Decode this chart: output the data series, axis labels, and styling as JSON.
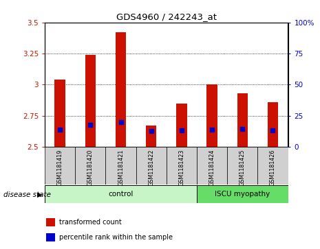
{
  "title": "GDS4960 / 242243_at",
  "samples": [
    "GSM1181419",
    "GSM1181420",
    "GSM1181421",
    "GSM1181422",
    "GSM1181423",
    "GSM1181424",
    "GSM1181425",
    "GSM1181426"
  ],
  "transformed_counts": [
    3.04,
    3.24,
    3.42,
    2.67,
    2.85,
    3.0,
    2.93,
    2.86
  ],
  "percentile_values": [
    2.64,
    2.68,
    2.7,
    2.625,
    2.635,
    2.64,
    2.645,
    2.635
  ],
  "ymin": 2.5,
  "ymax": 3.5,
  "yticks_left": [
    2.5,
    2.75,
    3.0,
    3.25,
    3.5
  ],
  "ytick_labels_left": [
    "2.5",
    "2.75",
    "3",
    "3.25",
    "3.5"
  ],
  "right_yticks": [
    0,
    25,
    50,
    75,
    100
  ],
  "right_ytick_labels": [
    "0",
    "25",
    "50",
    "75",
    "100%"
  ],
  "groups": [
    {
      "label": "control",
      "indices": [
        0,
        1,
        2,
        3,
        4
      ],
      "color": "#c8f5c8"
    },
    {
      "label": "ISCU myopathy",
      "indices": [
        5,
        6,
        7
      ],
      "color": "#66dd66"
    }
  ],
  "bar_color": "#cc1100",
  "percentile_color": "#0000cc",
  "plot_bg_color": "#ffffff",
  "bar_bg_color": "#d0d0d0",
  "left_tick_color": "#cc1100",
  "right_tick_color": "#0000cc",
  "grid_color": "#000000",
  "disease_state_label": "disease state",
  "legend_items": [
    {
      "label": "transformed count",
      "color": "#cc1100"
    },
    {
      "label": "percentile rank within the sample",
      "color": "#0000cc"
    }
  ],
  "bar_width": 0.35,
  "bar_marker_size": 4
}
